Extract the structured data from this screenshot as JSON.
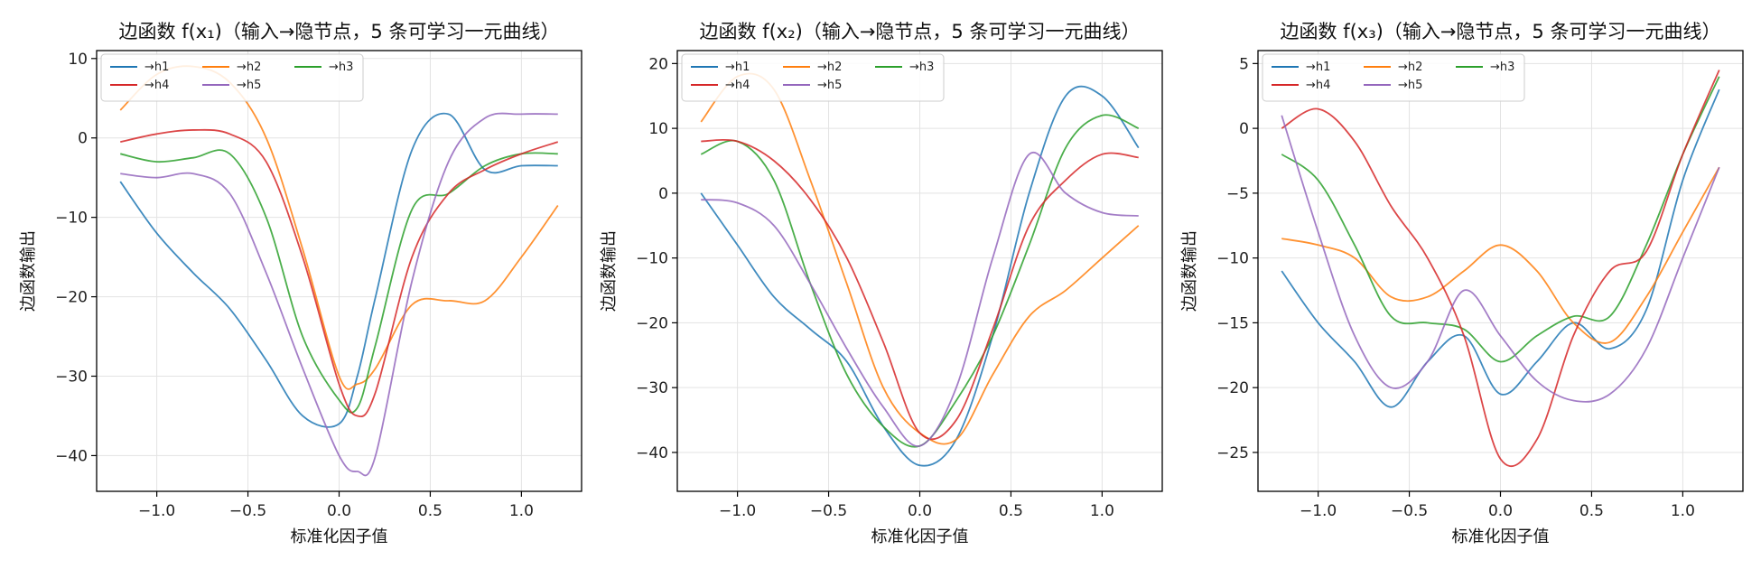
{
  "colors": {
    "h1": "#1f77b4",
    "h2": "#ff7f0e",
    "h3": "#2ca02c",
    "h4": "#d62728",
    "h5": "#9467bd"
  },
  "chart_data": [
    {
      "type": "line",
      "title": "边函数 f(x₁)（输入→隐节点，5 条可学习一元曲线）",
      "xlabel": "标准化因子值",
      "ylabel": "边函数输出",
      "xlim": [
        -1.33,
        1.33
      ],
      "ylim": [
        -44.5,
        11
      ],
      "xticks": [
        -1.0,
        -0.5,
        0.0,
        0.5,
        1.0
      ],
      "yticks": [
        10,
        0,
        -10,
        -20,
        -30,
        -40
      ],
      "grid": true,
      "legend_position": "upper-left",
      "x": [
        -1.2,
        -1.0,
        -0.8,
        -0.6,
        -0.4,
        -0.2,
        0.0,
        0.1,
        0.2,
        0.4,
        0.6,
        0.8,
        1.0,
        1.2
      ],
      "series": [
        {
          "name": "→h1",
          "values": [
            -5.5,
            -12,
            -17,
            -21.5,
            -28,
            -35,
            -36,
            -30,
            -20,
            -1.5,
            3,
            -4,
            -3.5,
            -3.5
          ]
        },
        {
          "name": "→h2",
          "values": [
            3.5,
            8,
            9,
            7,
            0,
            -14,
            -30,
            -31,
            -29,
            -21,
            -20.5,
            -20.5,
            -15,
            -8.5
          ]
        },
        {
          "name": "→h3",
          "values": [
            -2,
            -3,
            -2.5,
            -2,
            -10,
            -25,
            -33,
            -34,
            -26,
            -9,
            -7,
            -3.5,
            -2,
            -2
          ]
        },
        {
          "name": "→h4",
          "values": [
            -0.5,
            0.5,
            1,
            0.5,
            -3,
            -15,
            -31,
            -35,
            -32,
            -15,
            -7,
            -4,
            -2,
            -0.5
          ]
        },
        {
          "name": "→h5",
          "values": [
            -4.5,
            -5,
            -4.5,
            -7,
            -17,
            -29,
            -40,
            -42,
            -40,
            -18,
            -3,
            2.5,
            3,
            3
          ]
        }
      ]
    },
    {
      "type": "line",
      "title": "边函数 f(x₂)（输入→隐节点，5 条可学习一元曲线）",
      "xlabel": "标准化因子值",
      "ylabel": "边函数输出",
      "xlim": [
        -1.33,
        1.33
      ],
      "ylim": [
        -46,
        22
      ],
      "xticks": [
        -1.0,
        -0.5,
        0.0,
        0.5,
        1.0
      ],
      "yticks": [
        20,
        10,
        0,
        -10,
        -20,
        -30,
        -40
      ],
      "grid": true,
      "legend_position": "upper-left",
      "x": [
        -1.2,
        -1.0,
        -0.8,
        -0.6,
        -0.4,
        -0.2,
        0.0,
        0.2,
        0.4,
        0.6,
        0.8,
        1.0,
        1.2
      ],
      "series": [
        {
          "name": "→h1",
          "values": [
            0,
            -8,
            -16,
            -21,
            -26,
            -36,
            -42,
            -38,
            -22,
            0,
            15,
            15,
            7
          ]
        },
        {
          "name": "→h2",
          "values": [
            11,
            18,
            16,
            2,
            -14,
            -30,
            -37,
            -38,
            -28,
            -19,
            -15,
            -10,
            -5
          ]
        },
        {
          "name": "→h3",
          "values": [
            6,
            8,
            2,
            -14,
            -28,
            -36,
            -39,
            -32,
            -22,
            -8,
            7,
            12,
            10
          ]
        },
        {
          "name": "→h4",
          "values": [
            8,
            8,
            5,
            -1,
            -10,
            -23,
            -37,
            -35,
            -21,
            -5,
            2,
            6,
            5.5
          ]
        },
        {
          "name": "→h5",
          "values": [
            -1,
            -1.5,
            -5,
            -14,
            -24,
            -33,
            -39,
            -30,
            -10,
            6,
            0,
            -3,
            -3.5
          ]
        }
      ]
    },
    {
      "type": "line",
      "title": "边函数 f(x₃)（输入→隐节点，5 条可学习一元曲线）",
      "xlabel": "标准化因子值",
      "ylabel": "边函数输出",
      "xlim": [
        -1.33,
        1.33
      ],
      "ylim": [
        -28,
        6
      ],
      "xticks": [
        -1.0,
        -0.5,
        0.0,
        0.5,
        1.0
      ],
      "yticks": [
        5,
        0,
        -5,
        -10,
        -15,
        -20,
        -25
      ],
      "grid": true,
      "legend_position": "upper-left",
      "x": [
        -1.2,
        -1.0,
        -0.8,
        -0.6,
        -0.4,
        -0.2,
        0.0,
        0.2,
        0.4,
        0.6,
        0.8,
        1.0,
        1.2
      ],
      "series": [
        {
          "name": "→h1",
          "values": [
            -11,
            -15,
            -18,
            -21.5,
            -18,
            -16,
            -20.5,
            -18,
            -15,
            -17,
            -14,
            -4,
            3
          ]
        },
        {
          "name": "→h2",
          "values": [
            -8.5,
            -9,
            -10,
            -13,
            -13,
            -11,
            -9,
            -11,
            -15,
            -16.5,
            -13,
            -8,
            -3
          ]
        },
        {
          "name": "→h3",
          "values": [
            -2,
            -4,
            -9,
            -14.5,
            -15,
            -15.5,
            -18,
            -16,
            -14.5,
            -14.5,
            -9,
            -2,
            4
          ]
        },
        {
          "name": "→h4",
          "values": [
            0,
            1.5,
            -1,
            -6,
            -10,
            -16,
            -25.5,
            -24,
            -16,
            -11,
            -9.5,
            -2,
            4.5
          ]
        },
        {
          "name": "→h5",
          "values": [
            1,
            -8,
            -16,
            -20,
            -18,
            -12.5,
            -16,
            -19.5,
            -21,
            -20.5,
            -17,
            -10,
            -3
          ]
        }
      ]
    }
  ]
}
